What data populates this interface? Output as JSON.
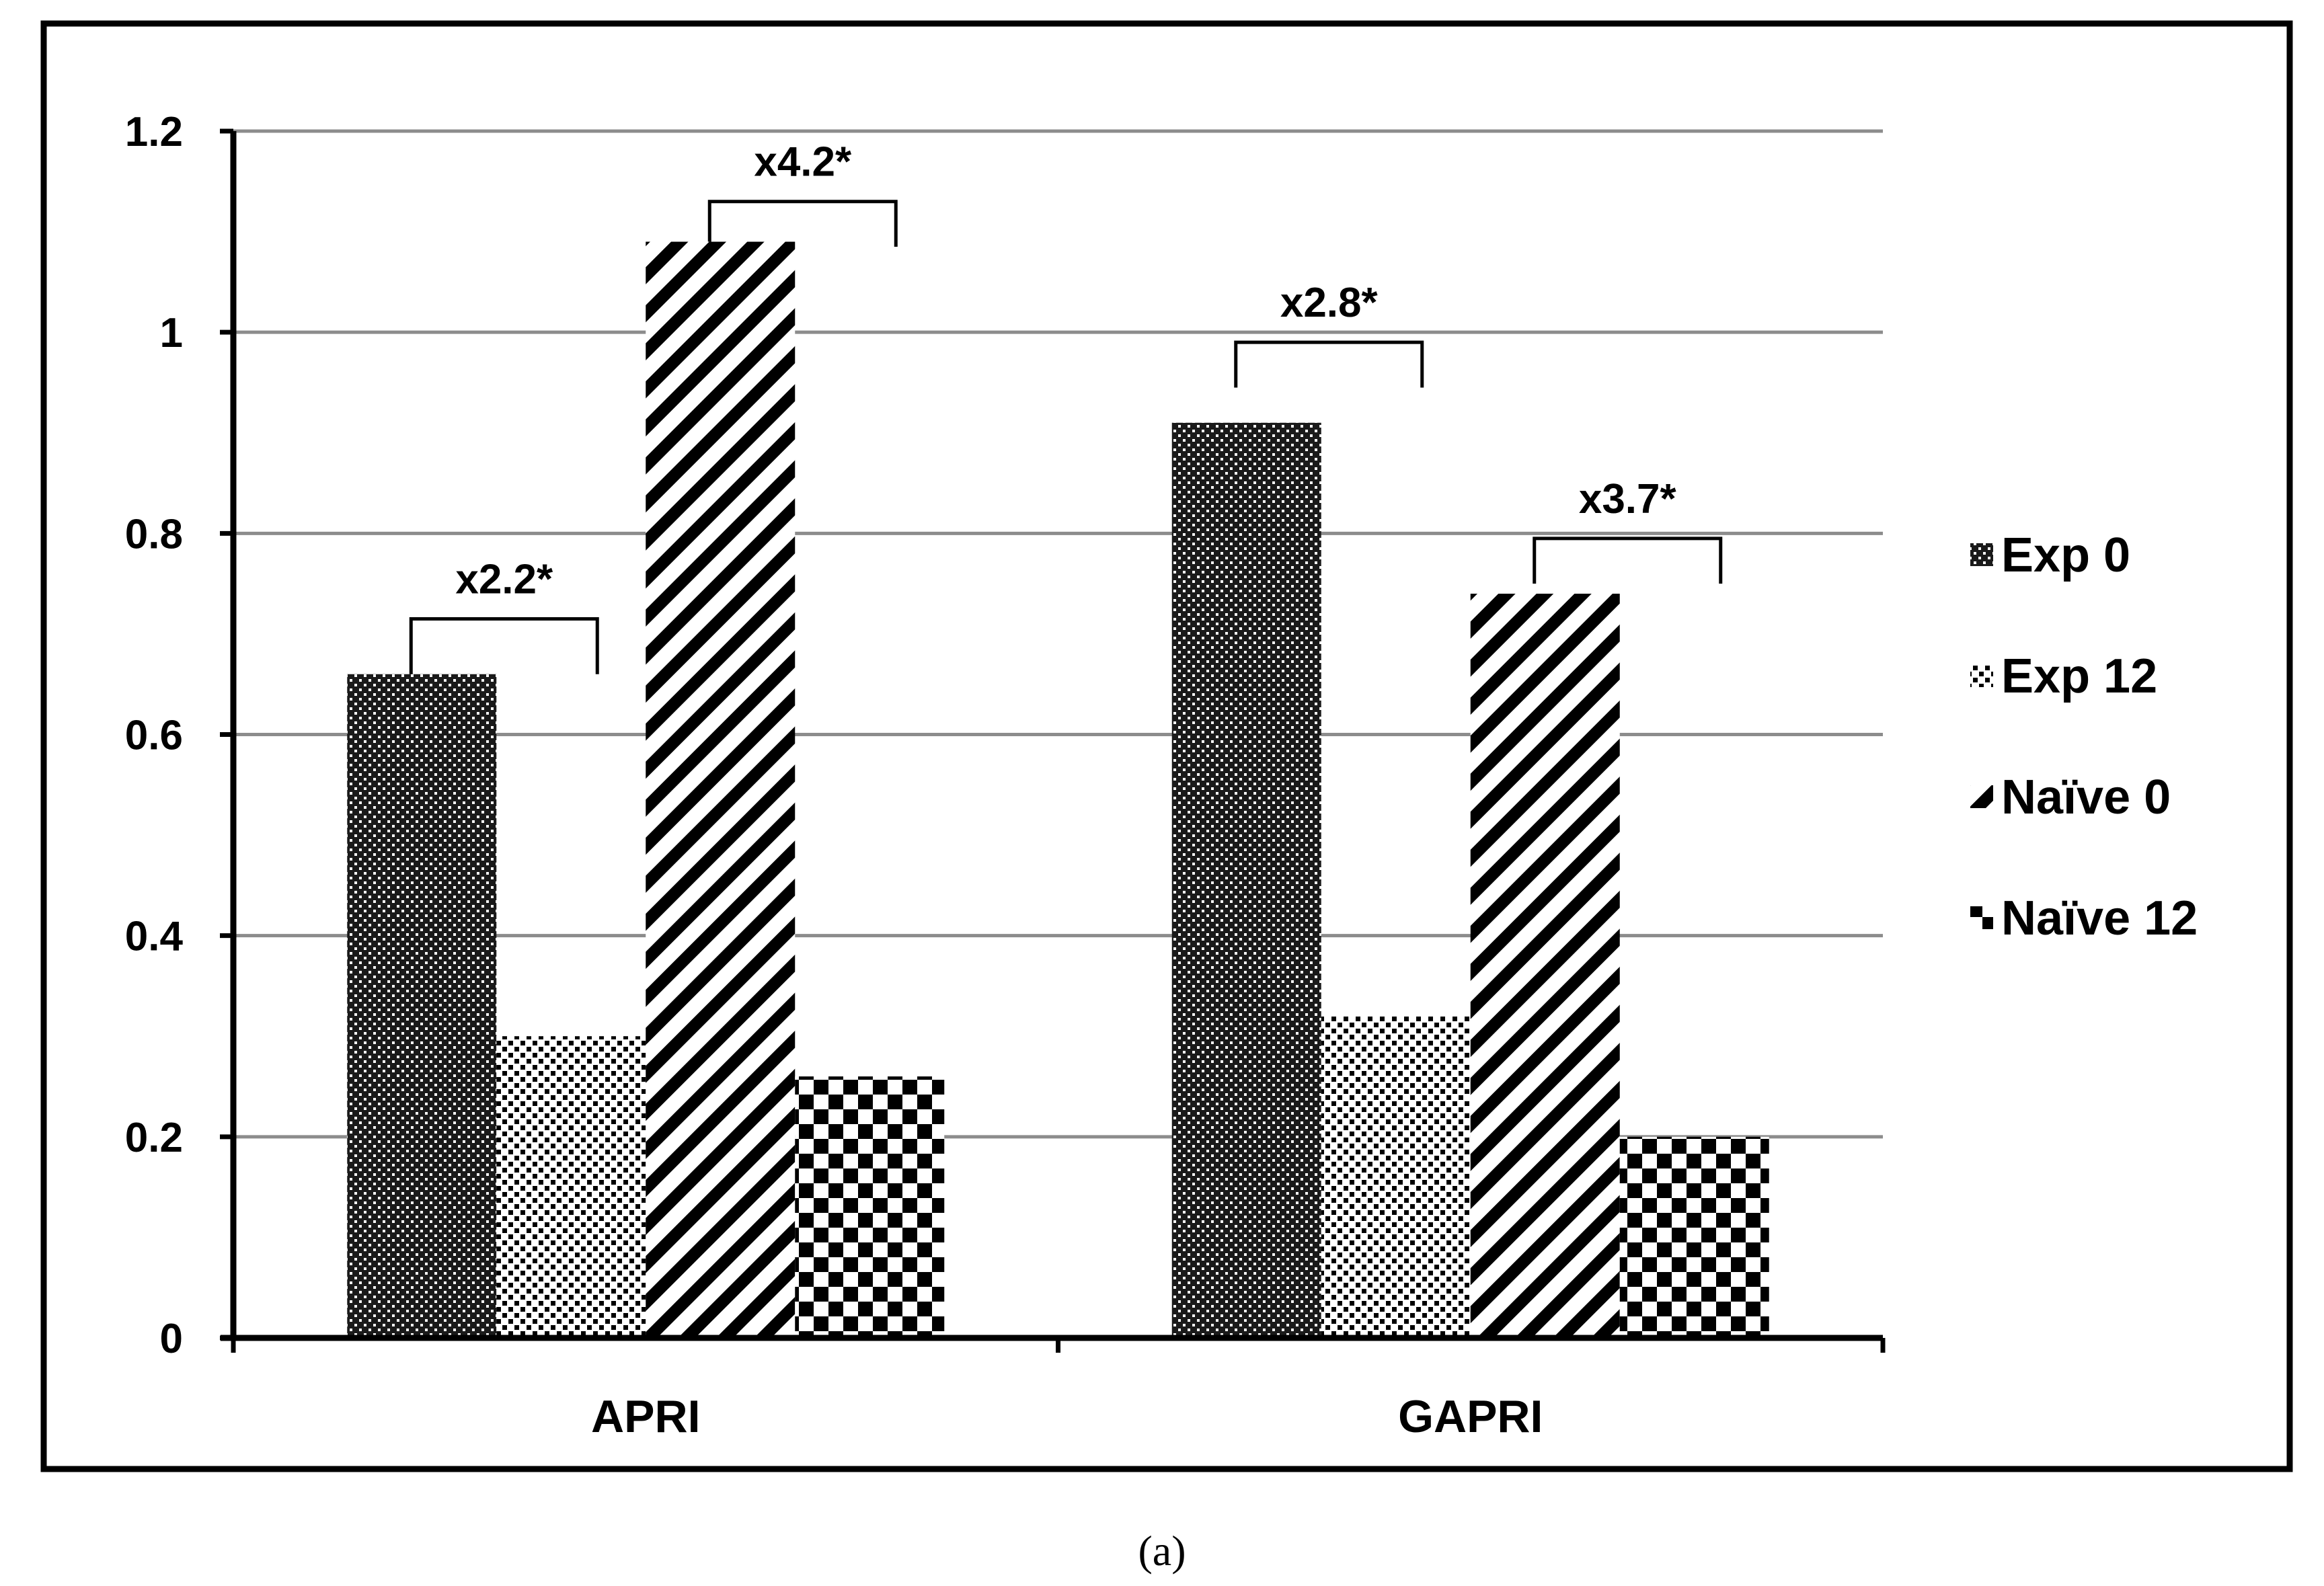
{
  "chart_data": {
    "type": "bar",
    "categories": [
      "APRI",
      "GAPRI"
    ],
    "series": [
      {
        "name": "Exp 0",
        "values": [
          0.66,
          0.91
        ],
        "pattern": "dense-dots"
      },
      {
        "name": "Exp 12",
        "values": [
          0.3,
          0.32
        ],
        "pattern": "sparse-dots"
      },
      {
        "name": "Naïve 0",
        "values": [
          1.09,
          0.74
        ],
        "pattern": "diagonal-stripes"
      },
      {
        "name": "Naïve 12",
        "values": [
          0.26,
          0.2
        ],
        "pattern": "checkerboard"
      }
    ],
    "ylim": [
      0,
      1.2
    ],
    "yticks": [
      "0",
      "0.2",
      "0.4",
      "0.6",
      "0.8",
      "1",
      "1.2"
    ],
    "ytick_values": [
      0,
      0.2,
      0.4,
      0.6,
      0.8,
      1.0,
      1.2
    ],
    "grid": true,
    "legend_position": "right",
    "annotations": [
      {
        "text": "x2.2*",
        "category": 0,
        "from_series": 0,
        "to_series": 1,
        "bracket_y": 0.715,
        "bracket_low": [
          0.66,
          0.66
        ]
      },
      {
        "text": "x4.2*",
        "category": 0,
        "from_series": 2,
        "to_series": 3,
        "bracket_y": 1.13,
        "bracket_low": [
          1.09,
          1.085
        ]
      },
      {
        "text": "x2.8*",
        "category": 1,
        "from_series": 0,
        "to_series": 1,
        "bracket_y": 0.99,
        "bracket_low": [
          0.945,
          0.945
        ]
      },
      {
        "text": "x3.7*",
        "category": 1,
        "from_series": 2,
        "to_series": 3,
        "bracket_y": 0.795,
        "bracket_low": [
          0.75,
          0.75
        ]
      }
    ],
    "colors": {
      "fill": "#000000",
      "background": "#ffffff",
      "grid": "#8c8c8c"
    }
  },
  "caption": "(a)"
}
